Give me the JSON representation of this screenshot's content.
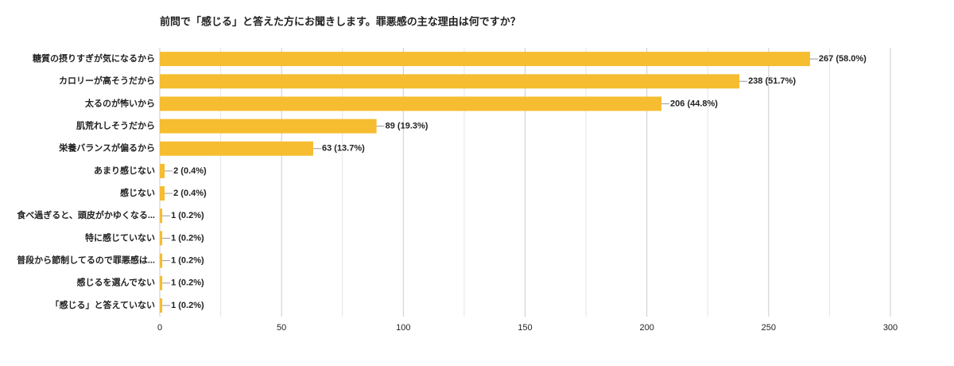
{
  "chart_data": {
    "type": "bar",
    "orientation": "horizontal",
    "title": "前問で「感じる」と答えた方にお聞きします。罪悪感の主な理由は何ですか？",
    "categories": [
      "糖質の摂りすぎが気になるから",
      "カロリーが高そうだから",
      "太るのが怖いから",
      "肌荒れしそうだから",
      "栄養バランスが偏るから",
      "あまり感じない",
      "感じない",
      "食べ過ぎると、頭皮がかゆくなる...",
      "特に感じていない",
      "普段から節制してるので罪悪感は...",
      "感じるを選んでない",
      "「感じる」と答えていない"
    ],
    "values": [
      267,
      238,
      206,
      89,
      63,
      2,
      2,
      1,
      1,
      1,
      1,
      1
    ],
    "value_labels": [
      "267 (58.0%)",
      "238 (51.7%)",
      "206 (44.8%)",
      "89 (19.3%)",
      "63 (13.7%)",
      "2 (0.4%)",
      "2 (0.4%)",
      "1 (0.2%)",
      "1 (0.2%)",
      "1 (0.2%)",
      "1 (0.2%)",
      "1 (0.2%)"
    ],
    "color": "#f6bd31",
    "xlim": [
      0,
      300
    ],
    "xticks": [
      0,
      50,
      100,
      150,
      200,
      250,
      300
    ],
    "grid": true,
    "minor_grid": true
  }
}
